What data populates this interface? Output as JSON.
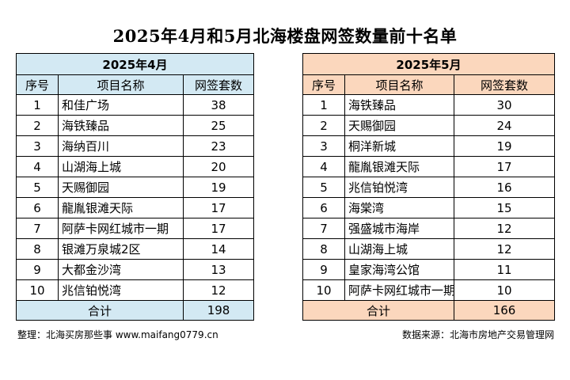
{
  "title": "2025年4月和5月北海楼盘网签数量前十名单",
  "columns": {
    "rank": "序号",
    "name": "项目名称",
    "count": "网签套数"
  },
  "april": {
    "header": "2025年4月",
    "rows": [
      {
        "rank": "1",
        "name": "和佳广场",
        "count": "38"
      },
      {
        "rank": "2",
        "name": "海铁臻品",
        "count": "25"
      },
      {
        "rank": "3",
        "name": "海纳百川",
        "count": "23"
      },
      {
        "rank": "4",
        "name": "山湖海上城",
        "count": "20"
      },
      {
        "rank": "5",
        "name": "天赐御园",
        "count": "19"
      },
      {
        "rank": "6",
        "name": "龍胤银滩天际",
        "count": "17"
      },
      {
        "rank": "7",
        "name": "阿萨卡网红城市一期",
        "count": "17"
      },
      {
        "rank": "8",
        "name": "银滩万泉城2区",
        "count": "14"
      },
      {
        "rank": "9",
        "name": "大都金沙湾",
        "count": "13"
      },
      {
        "rank": "10",
        "name": "兆信铂悦湾",
        "count": "12"
      }
    ],
    "total_label": "合计",
    "total": "198"
  },
  "may": {
    "header": "2025年5月",
    "rows": [
      {
        "rank": "1",
        "name": "海铁臻品",
        "count": "30"
      },
      {
        "rank": "2",
        "name": "天赐御园",
        "count": "24"
      },
      {
        "rank": "3",
        "name": "桐洋新城",
        "count": "19"
      },
      {
        "rank": "4",
        "name": "龍胤银滩天际",
        "count": "17"
      },
      {
        "rank": "5",
        "name": "兆信铂悦湾",
        "count": "16"
      },
      {
        "rank": "6",
        "name": "海棠湾",
        "count": "15"
      },
      {
        "rank": "7",
        "name": "强盛城市海岸",
        "count": "12"
      },
      {
        "rank": "8",
        "name": "山湖海上城",
        "count": "12"
      },
      {
        "rank": "9",
        "name": "皇家海湾公馆",
        "count": "11"
      },
      {
        "rank": "10",
        "name": "阿萨卡网红城市一期",
        "count": "10"
      }
    ],
    "total_label": "合计",
    "total": "166"
  },
  "footer": {
    "left": "整理：北海买房那些事 www.maifang0779.cn",
    "right": "数据来源：北海市房地产交易管理网"
  },
  "colors": {
    "april_header_bg": "#d3e9f3",
    "may_header_bg": "#fbd7bd"
  }
}
